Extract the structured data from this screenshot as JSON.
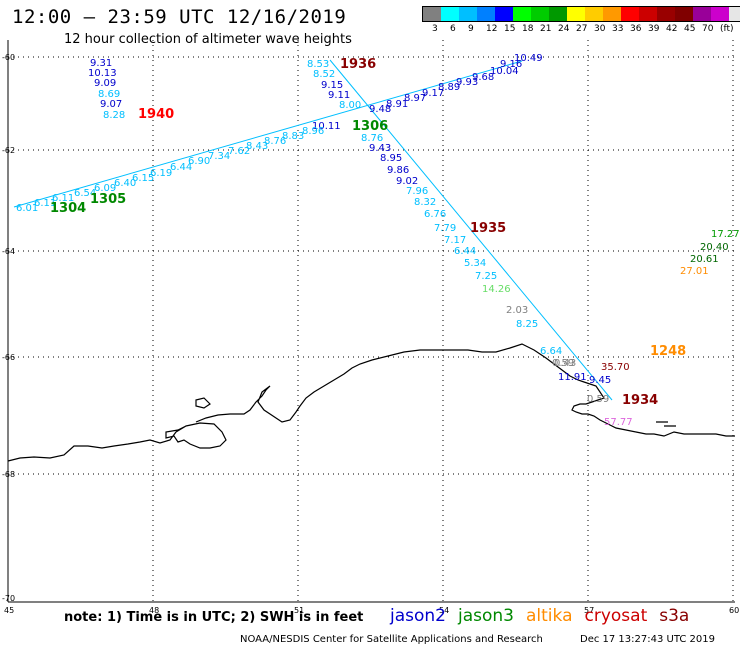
{
  "title": "12:00 – 23:59 UTC 12/16/2019",
  "subtitle": "12 hour collection of altimeter wave heights",
  "scale": {
    "colors": [
      "#808080",
      "#00ffff",
      "#00bfff",
      "#0080ff",
      "#0000ff",
      "#00ff00",
      "#00cc00",
      "#009900",
      "#ffff00",
      "#ffcc00",
      "#ff9900",
      "#ff0000",
      "#cc0000",
      "#990000",
      "#800000",
      "#990099",
      "#cc00cc",
      "#e6e6e6",
      "#000000"
    ],
    "labels": [
      "3",
      "6",
      "9",
      "12",
      "15",
      "18",
      "21",
      "24",
      "27",
      "30",
      "33",
      "36",
      "39",
      "42",
      "45",
      "70",
      "(ft)"
    ]
  },
  "axes": {
    "lat_labels": [
      "-60",
      "-62",
      "-64",
      "-66",
      "-68",
      "-70"
    ],
    "lon_labels": [
      "45",
      "48",
      "51",
      "54",
      "57",
      "60"
    ]
  },
  "note": "note: 1) Time is in UTC; 2) SWH is in feet",
  "satellites": [
    {
      "name": "jason2",
      "color": "#0000cc"
    },
    {
      "name": "jason3",
      "color": "#008800"
    },
    {
      "name": "altika",
      "color": "#ff8c00"
    },
    {
      "name": "cryosat",
      "color": "#cc0000"
    },
    {
      "name": "s3a",
      "color": "#880000"
    }
  ],
  "credit": "NOAA/NESDIS Center for Satellite Applications and Research",
  "timestamp": "Dec 17 13:27:43 UTC 2019",
  "time_labels": [
    {
      "text": "1936",
      "color": "#880000"
    },
    {
      "text": "1940",
      "color": "#ff0000"
    },
    {
      "text": "1306",
      "color": "#008800"
    },
    {
      "text": "1304",
      "color": "#008800"
    },
    {
      "text": "1305",
      "color": "#008800"
    },
    {
      "text": "1935",
      "color": "#880000"
    },
    {
      "text": "1248",
      "color": "#ff8c00"
    },
    {
      "text": "1934",
      "color": "#880000"
    }
  ],
  "wave_values": [
    {
      "text": "9.31",
      "color": "#0000cc"
    },
    {
      "text": "10.13",
      "color": "#0000cc"
    },
    {
      "text": "9.09",
      "color": "#0000cc"
    },
    {
      "text": "8.69",
      "color": "#00bfff"
    },
    {
      "text": "9.07",
      "color": "#0000cc"
    },
    {
      "text": "8.28",
      "color": "#00bfff"
    },
    {
      "text": "8.53",
      "color": "#00bfff"
    },
    {
      "text": "8.52",
      "color": "#00bfff"
    },
    {
      "text": "9.15",
      "color": "#0000cc"
    },
    {
      "text": "9.11",
      "color": "#0000cc"
    },
    {
      "text": "8.00",
      "color": "#00bfff"
    },
    {
      "text": "9.48",
      "color": "#0000cc"
    },
    {
      "text": "10.11",
      "color": "#0000cc"
    },
    {
      "text": "8.76",
      "color": "#00bfff"
    },
    {
      "text": "9.43",
      "color": "#0000cc"
    },
    {
      "text": "8.95",
      "color": "#0000cc"
    },
    {
      "text": "9.86",
      "color": "#0000cc"
    },
    {
      "text": "9.02",
      "color": "#0000cc"
    },
    {
      "text": "7.96",
      "color": "#00bfff"
    },
    {
      "text": "8.32",
      "color": "#00bfff"
    },
    {
      "text": "6.76",
      "color": "#00bfff"
    },
    {
      "text": "7.79",
      "color": "#00bfff"
    },
    {
      "text": "7.17",
      "color": "#00bfff"
    },
    {
      "text": "6.44",
      "color": "#00bfff"
    },
    {
      "text": "5.34",
      "color": "#00bfff"
    },
    {
      "text": "7.25",
      "color": "#00bfff"
    },
    {
      "text": "14.26",
      "color": "#66dd66"
    },
    {
      "text": "2.03",
      "color": "#808080"
    },
    {
      "text": "8.25",
      "color": "#00bfff"
    },
    {
      "text": "6.64",
      "color": "#00bfff"
    },
    {
      "text": "0.59",
      "color": "#808080"
    },
    {
      "text": "35.70",
      "color": "#880000"
    },
    {
      "text": "0.43",
      "color": "#808080"
    },
    {
      "text": "11.91",
      "color": "#0000cc"
    },
    {
      "text": "9.45",
      "color": "#0000cc"
    },
    {
      "text": "0.59",
      "color": "#808080"
    },
    {
      "text": "57.77",
      "color": "#dd66dd"
    },
    {
      "text": "17.27",
      "color": "#009900"
    },
    {
      "text": "20.40",
      "color": "#006600"
    },
    {
      "text": "20.61",
      "color": "#006600"
    },
    {
      "text": "27.01",
      "color": "#ff8c00"
    },
    {
      "text": "6.01",
      "color": "#00bfff"
    },
    {
      "text": "6.11",
      "color": "#00bfff"
    },
    {
      "text": "6.11",
      "color": "#00bfff"
    },
    {
      "text": "6.54",
      "color": "#00bfff"
    },
    {
      "text": "6.09",
      "color": "#00bfff"
    },
    {
      "text": "6.40",
      "color": "#00bfff"
    },
    {
      "text": "6.15",
      "color": "#00bfff"
    },
    {
      "text": "6.19",
      "color": "#00bfff"
    },
    {
      "text": "6.44",
      "color": "#00bfff"
    },
    {
      "text": "6.90",
      "color": "#00bfff"
    },
    {
      "text": "7.34",
      "color": "#00bfff"
    },
    {
      "text": "7.62",
      "color": "#00bfff"
    },
    {
      "text": "8.43",
      "color": "#00bfff"
    },
    {
      "text": "8.76",
      "color": "#00bfff"
    },
    {
      "text": "8.83",
      "color": "#00bfff"
    },
    {
      "text": "8.96",
      "color": "#00bfff"
    },
    {
      "text": "8.91",
      "color": "#0000cc"
    },
    {
      "text": "8.97",
      "color": "#0000cc"
    },
    {
      "text": "9.17",
      "color": "#0000cc"
    },
    {
      "text": "8.89",
      "color": "#0000cc"
    },
    {
      "text": "9.93",
      "color": "#0000cc"
    },
    {
      "text": "9.68",
      "color": "#0000cc"
    },
    {
      "text": "10.04",
      "color": "#0000cc"
    },
    {
      "text": "9.16",
      "color": "#0000cc"
    },
    {
      "text": "10.49",
      "color": "#0000cc"
    }
  ]
}
